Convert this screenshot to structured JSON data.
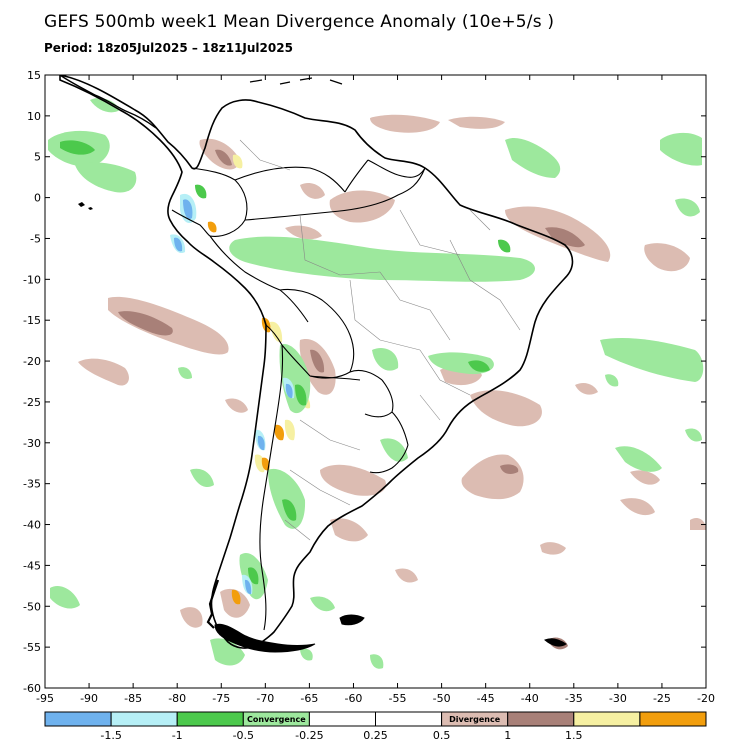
{
  "title": "GEFS 500mb week1 Mean Divergence Anomaly (10e+5/s )",
  "period": "Period: 18z05Jul2025 – 18z11Jul2025",
  "map": {
    "region": "South America",
    "lat_range": [
      -60,
      15
    ],
    "lon_range": [
      -95,
      -20
    ],
    "lat_ticks": [
      15,
      10,
      5,
      0,
      -5,
      -10,
      -15,
      -20,
      -25,
      -30,
      -35,
      -40,
      -45,
      -50,
      -55,
      -60
    ],
    "lon_ticks": [
      -95,
      -90,
      -85,
      -80,
      -75,
      -70,
      -65,
      -60,
      -55,
      -50,
      -45,
      -40,
      -35,
      -30,
      -25,
      -20
    ]
  },
  "colorbar": {
    "colors": [
      "#6fb2ee",
      "#b6eff6",
      "#4cc94c",
      "#9de89d",
      "#ffffff",
      "#ffffff",
      "#dcbcb2",
      "#a88078",
      "#f6f0a2",
      "#f29e0d"
    ],
    "tick_labels": [
      "-1.5",
      "-1",
      "-0.5",
      "-0.25",
      "0.25",
      "0.5",
      "1",
      "1.5"
    ],
    "convergence_label": "Convergence",
    "divergence_label": "Divergence"
  },
  "colors": {
    "convergence_light": "#9de89d",
    "convergence_medium": "#4cc94c",
    "convergence_strong": "#b6eff6",
    "convergence_extreme": "#6fb2ee",
    "divergence_light": "#dcbcb2",
    "divergence_medium": "#a88078",
    "divergence_strong": "#f6f0a2",
    "divergence_extreme": "#f29e0d"
  }
}
